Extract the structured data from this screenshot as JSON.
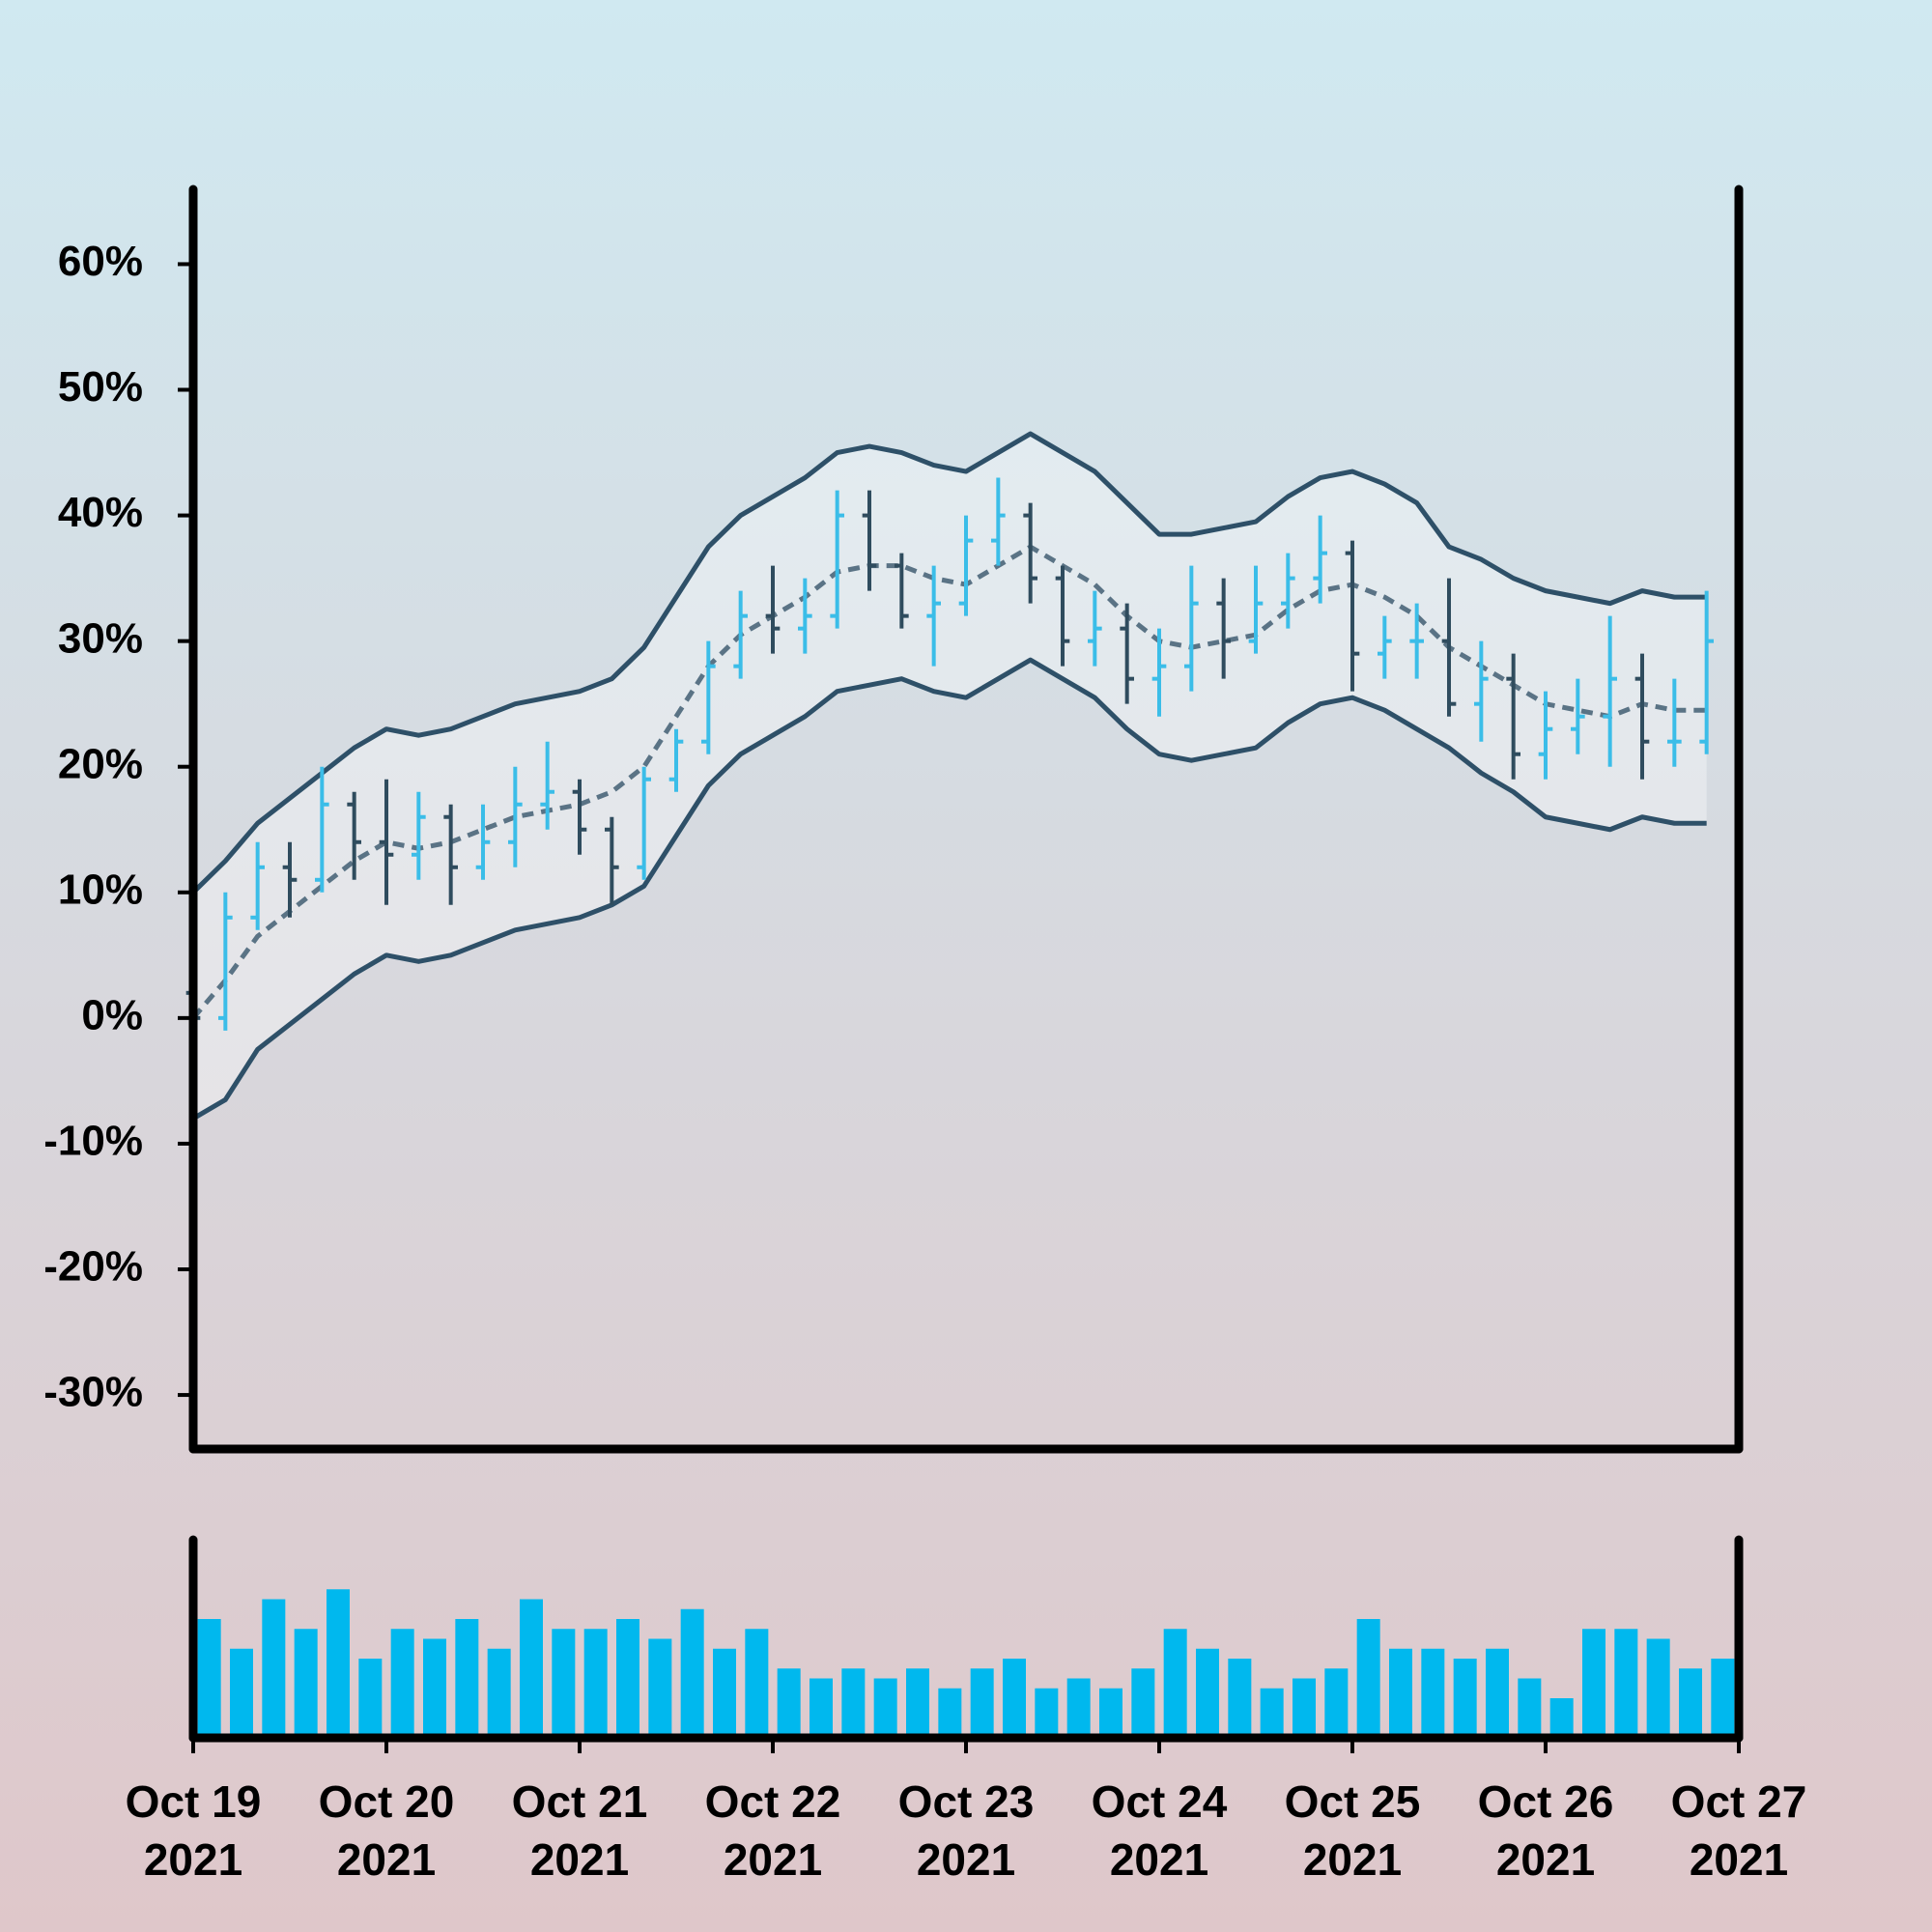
{
  "chart_data": {
    "type": "ohlc",
    "x": [
      "2021-10-19T00:00",
      "2021-10-19T04:00",
      "2021-10-19T08:00",
      "2021-10-19T12:00",
      "2021-10-19T16:00",
      "2021-10-19T20:00",
      "2021-10-20T00:00",
      "2021-10-20T04:00",
      "2021-10-20T08:00",
      "2021-10-20T12:00",
      "2021-10-20T16:00",
      "2021-10-20T20:00",
      "2021-10-21T00:00",
      "2021-10-21T04:00",
      "2021-10-21T08:00",
      "2021-10-21T12:00",
      "2021-10-21T16:00",
      "2021-10-21T20:00",
      "2021-10-22T00:00",
      "2021-10-22T04:00",
      "2021-10-22T08:00",
      "2021-10-22T12:00",
      "2021-10-22T16:00",
      "2021-10-22T20:00",
      "2021-10-23T00:00",
      "2021-10-23T04:00",
      "2021-10-23T08:00",
      "2021-10-23T12:00",
      "2021-10-23T16:00",
      "2021-10-23T20:00",
      "2021-10-24T00:00",
      "2021-10-24T04:00",
      "2021-10-24T08:00",
      "2021-10-24T12:00",
      "2021-10-24T16:00",
      "2021-10-24T20:00",
      "2021-10-25T00:00",
      "2021-10-25T04:00",
      "2021-10-25T08:00",
      "2021-10-25T12:00",
      "2021-10-25T16:00",
      "2021-10-25T20:00",
      "2021-10-26T00:00",
      "2021-10-26T04:00",
      "2021-10-26T08:00",
      "2021-10-26T12:00",
      "2021-10-26T16:00",
      "2021-10-26T20:00"
    ],
    "open": [
      2,
      0,
      8,
      12,
      11,
      17,
      14,
      13,
      16,
      12,
      14,
      17,
      18,
      15,
      12,
      19,
      22,
      28,
      32,
      31,
      32,
      40,
      36,
      32,
      33,
      38,
      40,
      35,
      30,
      31,
      27,
      28,
      33,
      30,
      33,
      35,
      37,
      29,
      30,
      30,
      25,
      27,
      21,
      23,
      24,
      27,
      22,
      22
    ],
    "high": [
      5,
      10,
      14,
      14,
      20,
      18,
      19,
      18,
      17,
      17,
      20,
      22,
      19,
      16,
      20,
      23,
      30,
      34,
      36,
      35,
      42,
      42,
      37,
      36,
      40,
      43,
      41,
      36,
      34,
      33,
      31,
      36,
      35,
      36,
      37,
      40,
      38,
      32,
      33,
      35,
      30,
      29,
      26,
      27,
      32,
      29,
      27,
      34
    ],
    "low": [
      -2,
      -1,
      7,
      8,
      10,
      11,
      9,
      11,
      9,
      11,
      12,
      15,
      13,
      9,
      11,
      18,
      21,
      27,
      29,
      29,
      31,
      34,
      31,
      28,
      32,
      36,
      33,
      28,
      28,
      25,
      24,
      26,
      27,
      29,
      31,
      33,
      26,
      27,
      27,
      24,
      22,
      19,
      19,
      21,
      20,
      19,
      20,
      21
    ],
    "close": [
      0,
      8,
      12,
      11,
      17,
      14,
      13,
      16,
      12,
      14,
      17,
      18,
      15,
      12,
      19,
      22,
      28,
      32,
      31,
      32,
      40,
      36,
      32,
      33,
      38,
      40,
      35,
      30,
      31,
      27,
      28,
      33,
      30,
      33,
      35,
      37,
      29,
      30,
      30,
      25,
      27,
      21,
      23,
      24,
      27,
      22,
      22,
      30
    ],
    "middle": [
      0,
      3,
      6.5,
      8.5,
      10.5,
      12.5,
      14,
      13.5,
      14,
      15,
      16,
      16.5,
      17,
      18,
      20,
      24,
      28,
      30.5,
      32,
      33.5,
      35.5,
      36,
      36,
      35,
      34.5,
      36,
      37.5,
      36,
      34.5,
      32,
      30,
      29.5,
      30,
      30.5,
      32.5,
      34,
      34.5,
      33.5,
      32,
      29.5,
      28,
      26.5,
      25,
      24.5,
      24,
      25,
      24.5,
      24.5
    ],
    "upper": [
      10,
      12.5,
      15.5,
      17.5,
      19.5,
      21.5,
      23,
      22.5,
      23,
      24,
      25,
      25.5,
      26,
      27,
      29.5,
      33.5,
      37.5,
      40,
      41.5,
      43,
      45,
      45.5,
      45,
      44,
      43.5,
      45,
      46.5,
      45,
      43.5,
      41,
      38.5,
      38.5,
      39,
      39.5,
      41.5,
      43,
      43.5,
      42.5,
      41,
      37.5,
      36.5,
      35,
      34,
      33.5,
      33,
      34,
      33.5,
      33.5
    ],
    "lower": [
      -8,
      -6.5,
      -2.5,
      -0.5,
      1.5,
      3.5,
      5,
      4.5,
      5,
      6,
      7,
      7.5,
      8,
      9,
      10.5,
      14.5,
      18.5,
      21,
      22.5,
      24,
      26,
      26.5,
      27,
      26,
      25.5,
      27,
      28.5,
      27,
      25.5,
      23,
      21,
      20.5,
      21,
      21.5,
      23.5,
      25,
      25.5,
      24.5,
      23,
      21.5,
      19.5,
      18,
      16,
      15.5,
      15,
      16,
      15.5,
      15.5
    ],
    "volume": [
      60,
      45,
      70,
      55,
      75,
      40,
      55,
      50,
      60,
      45,
      70,
      55,
      55,
      60,
      50,
      65,
      45,
      55,
      35,
      30,
      35,
      30,
      35,
      25,
      35,
      40,
      25,
      30,
      25,
      35,
      55,
      45,
      40,
      25,
      30,
      35,
      60,
      45,
      45,
      40,
      45,
      30,
      20,
      55,
      55,
      50,
      35,
      40
    ],
    "up_color": "#3bbde8",
    "down_color": "#2f4c5e",
    "band_color": "#2e5068",
    "middle_color": "#5a7385",
    "volume_color": "#00b8ee",
    "xlim": [
      "2021-10-19",
      "2021-10-27"
    ],
    "xticks": [
      {
        "value": "2021-10-19",
        "label": "Oct 19\n2021"
      },
      {
        "value": "2021-10-20",
        "label": "Oct 20\n2021"
      },
      {
        "value": "2021-10-21",
        "label": "Oct 21\n2021"
      },
      {
        "value": "2021-10-22",
        "label": "Oct 22\n2021"
      },
      {
        "value": "2021-10-23",
        "label": "Oct 23\n2021"
      },
      {
        "value": "2021-10-24",
        "label": "Oct 24\n2021"
      },
      {
        "value": "2021-10-25",
        "label": "Oct 25\n2021"
      },
      {
        "value": "2021-10-26",
        "label": "Oct 26\n2021"
      },
      {
        "value": "2021-10-27",
        "label": "Oct 27\n2021"
      }
    ],
    "ylim": [
      -34.3,
      65.8
    ],
    "yticks": [
      {
        "value": -30,
        "label": "-30%"
      },
      {
        "value": -20,
        "label": "-20%"
      },
      {
        "value": -10,
        "label": "-10%"
      },
      {
        "value": 0,
        "label": "0%"
      },
      {
        "value": 10,
        "label": "10%"
      },
      {
        "value": 20,
        "label": "20%"
      },
      {
        "value": 30,
        "label": "30%"
      },
      {
        "value": 40,
        "label": "40%"
      },
      {
        "value": 50,
        "label": "50%"
      },
      {
        "value": 60,
        "label": "60%"
      }
    ],
    "volume_ylim": [
      0,
      100
    ]
  }
}
